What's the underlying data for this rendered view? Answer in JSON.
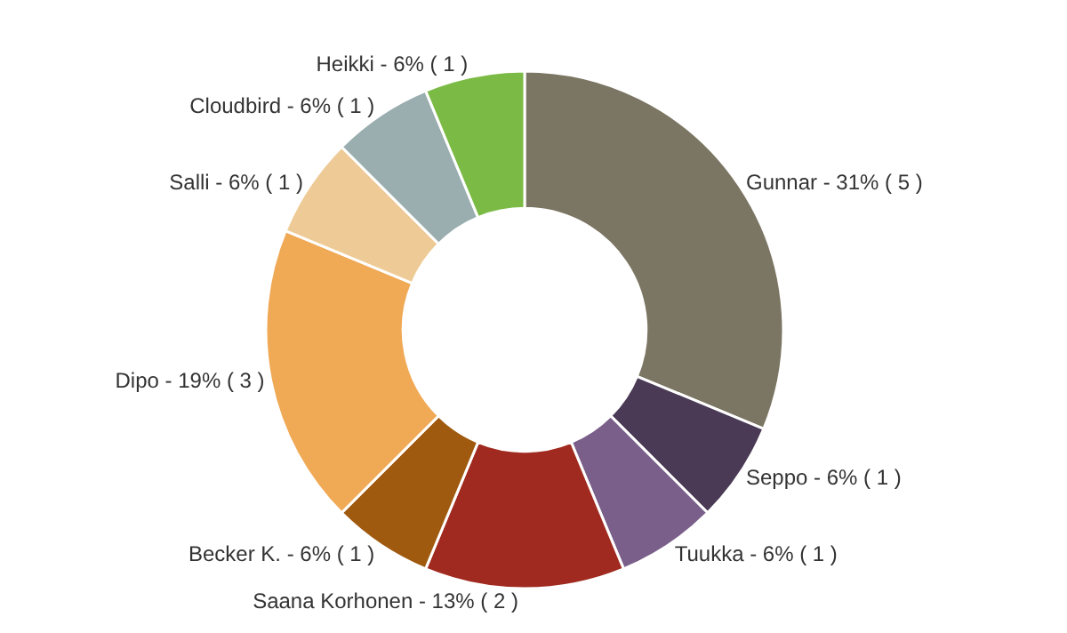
{
  "chart_data": {
    "type": "donut",
    "categories": [
      "Gunnar - 31% ( 5 )",
      "Seppo - 6% ( 1 )",
      "Tuukka - 6% ( 1 )",
      "Saana Korhonen - 13% ( 2 )",
      "Becker K. - 6% ( 1 )",
      "Dipo - 19% ( 3 )",
      "Salli - 6% ( 1 )",
      "Cloudbird - 6% ( 1 )",
      "Heikki - 6% ( 1 )"
    ],
    "values": [
      5,
      1,
      1,
      2,
      1,
      3,
      1,
      1,
      1
    ],
    "colors": [
      "#7b7563",
      "#4a3a55",
      "#7a5f8a",
      "#a02a1f",
      "#a05a0f",
      "#f0a955",
      "#eecb96",
      "#9aadaf",
      "#7bbb45"
    ],
    "legend": false
  }
}
